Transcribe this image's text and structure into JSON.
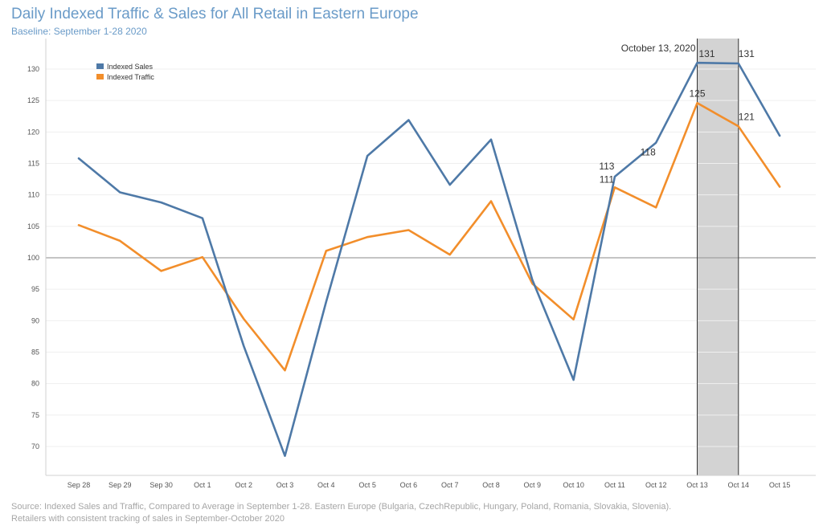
{
  "header": {
    "title": "Daily Indexed Traffic & Sales for All Retail in Eastern Europe",
    "subtitle": "Baseline: September 1-28 2020"
  },
  "footer": {
    "source_line1": "Source: Indexed Sales and Traffic, Compared to Average in September 1-28. Eastern Europe (Bulgaria, CzechRepublic, Hungary, Poland, Romania, Slovakia, Slovenia).",
    "source_line2": "Retailers with consistent tracking of sales in September-October 2020"
  },
  "chart_data": {
    "type": "line",
    "title": "Daily Indexed Traffic & Sales for All Retail in Eastern Europe",
    "subtitle": "Baseline: September 1-28 2020",
    "categories": [
      "Sep 28",
      "Sep 29",
      "Sep 30",
      "Oct 1",
      "Oct 2",
      "Oct 3",
      "Oct 4",
      "Oct 5",
      "Oct 6",
      "Oct 7",
      "Oct 8",
      "Oct 9",
      "Oct 10",
      "Oct 11",
      "Oct 12",
      "Oct 13",
      "Oct 14",
      "Oct 15"
    ],
    "series": [
      {
        "name": "Indexed Sales",
        "color": "#4e79a7",
        "values": [
          115.8,
          110.4,
          108.8,
          106.3,
          86.0,
          68.5,
          93.0,
          116.2,
          121.9,
          111.6,
          118.8,
          96.5,
          80.6,
          112.9,
          118.3,
          131.0,
          130.9,
          119.4
        ]
      },
      {
        "name": "Indexed Traffic",
        "color": "#f28e2b",
        "values": [
          105.2,
          102.7,
          97.9,
          100.1,
          90.3,
          82.1,
          101.1,
          103.3,
          104.4,
          100.5,
          109.0,
          95.9,
          90.2,
          111.2,
          108.0,
          124.6,
          120.9,
          111.3
        ]
      }
    ],
    "ylim": [
      65,
      133
    ],
    "yticks": [
      70,
      75,
      80,
      85,
      90,
      95,
      100,
      105,
      110,
      115,
      120,
      125,
      130
    ],
    "reference_line": 100,
    "highlight_range": [
      "Oct 13",
      "Oct 14"
    ],
    "highlight_color": "#d3d3d3",
    "annotation": {
      "category": "Oct 13",
      "text": "October 13, 2020"
    },
    "data_labels": [
      {
        "series": "Indexed Sales",
        "category": "Oct 11",
        "text": "113"
      },
      {
        "series": "Indexed Traffic",
        "category": "Oct 11",
        "text": "111"
      },
      {
        "series": "Indexed Sales",
        "category": "Oct 12",
        "text": "118"
      },
      {
        "series": "Indexed Sales",
        "category": "Oct 13",
        "text": "131"
      },
      {
        "series": "Indexed Traffic",
        "category": "Oct 13",
        "text": "125"
      },
      {
        "series": "Indexed Sales",
        "category": "Oct 14",
        "text": "131"
      },
      {
        "series": "Indexed Traffic",
        "category": "Oct 14",
        "text": "121"
      }
    ],
    "legend": {
      "position": "top-left",
      "entries": [
        "Indexed Sales",
        "Indexed Traffic"
      ]
    },
    "grid": true
  }
}
